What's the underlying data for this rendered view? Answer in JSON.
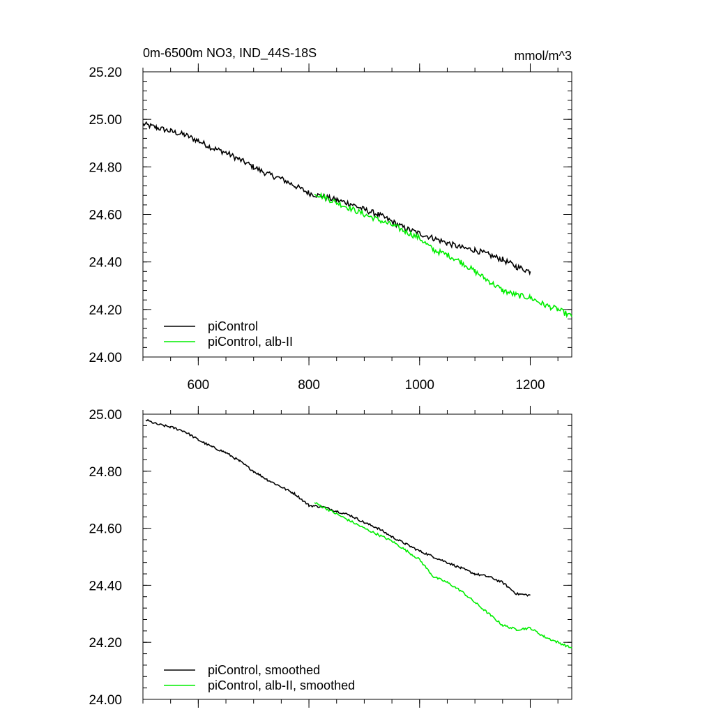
{
  "figure": {
    "title_left": "0m-6500m NO3, IND_44S-18S",
    "title_right": "mmol/m^3"
  },
  "chart_data": [
    {
      "type": "line",
      "title": "0m-6500m NO3, IND_44S-18S",
      "units": "mmol/m^3",
      "xlim": [
        500,
        1275
      ],
      "ylim": [
        24.0,
        25.2
      ],
      "x_ticks": [
        600,
        800,
        1000,
        1200
      ],
      "x_tick_labels": [
        "600",
        "800",
        "1000",
        "1200"
      ],
      "y_ticks": [
        24.0,
        24.2,
        24.4,
        24.6,
        24.8,
        25.0,
        25.2
      ],
      "y_tick_labels": [
        "24.00",
        "24.20",
        "24.40",
        "24.60",
        "24.80",
        "25.00",
        "25.20"
      ],
      "legend_position": "bottom-left",
      "series": [
        {
          "name": "piControl",
          "color": "#000000",
          "x": [
            500,
            525,
            550,
            575,
            600,
            625,
            650,
            675,
            700,
            725,
            750,
            775,
            800,
            825,
            850,
            875,
            900,
            925,
            950,
            975,
            1000,
            1025,
            1050,
            1075,
            1100,
            1125,
            1150,
            1175,
            1200
          ],
          "y": [
            24.98,
            24.965,
            24.95,
            24.935,
            24.91,
            24.88,
            24.86,
            24.83,
            24.8,
            24.77,
            24.75,
            24.72,
            24.69,
            24.675,
            24.66,
            24.645,
            24.62,
            24.6,
            24.57,
            24.54,
            24.52,
            24.5,
            24.48,
            24.46,
            24.45,
            24.43,
            24.41,
            24.38,
            24.36
          ],
          "noise": 0.012
        },
        {
          "name": "piControl, alb-II",
          "color": "#00ee00",
          "x": [
            810,
            850,
            900,
            950,
            1000,
            1025,
            1050,
            1075,
            1100,
            1125,
            1150,
            1175,
            1200,
            1225,
            1250,
            1275
          ],
          "y": [
            24.69,
            24.65,
            24.6,
            24.555,
            24.5,
            24.45,
            24.43,
            24.4,
            24.36,
            24.32,
            24.28,
            24.26,
            24.25,
            24.22,
            24.2,
            24.17
          ],
          "noise": 0.012
        }
      ]
    },
    {
      "type": "line",
      "xlim": [
        500,
        1275
      ],
      "ylim": [
        24.0,
        25.0
      ],
      "x_ticks": [
        600,
        800,
        1000,
        1200
      ],
      "y_ticks": [
        24.0,
        24.2,
        24.4,
        24.6,
        24.8,
        25.0
      ],
      "y_tick_labels": [
        "24.00",
        "24.20",
        "24.40",
        "24.60",
        "24.80",
        "25.00"
      ],
      "legend_position": "bottom-left",
      "series": [
        {
          "name": "piControl, smoothed",
          "color": "#000000",
          "x": [
            505,
            525,
            550,
            575,
            600,
            625,
            650,
            675,
            700,
            725,
            750,
            775,
            800,
            825,
            850,
            875,
            900,
            925,
            950,
            975,
            1000,
            1025,
            1050,
            1075,
            1100,
            1125,
            1150,
            1175,
            1200
          ],
          "y": [
            24.98,
            24.965,
            24.955,
            24.94,
            24.91,
            24.885,
            24.865,
            24.835,
            24.8,
            24.77,
            24.745,
            24.72,
            24.68,
            24.675,
            24.66,
            24.645,
            24.62,
            24.6,
            24.57,
            24.545,
            24.52,
            24.5,
            24.48,
            24.46,
            24.44,
            24.43,
            24.41,
            24.37,
            24.365
          ],
          "noise": 0.004
        },
        {
          "name": "piControl, alb-II, smoothed",
          "color": "#00ee00",
          "x": [
            810,
            850,
            900,
            950,
            1000,
            1025,
            1050,
            1075,
            1100,
            1125,
            1150,
            1175,
            1200,
            1225,
            1250,
            1275
          ],
          "y": [
            24.69,
            24.65,
            24.6,
            24.555,
            24.49,
            24.43,
            24.41,
            24.38,
            24.34,
            24.3,
            24.26,
            24.245,
            24.25,
            24.22,
            24.2,
            24.18
          ],
          "noise": 0.004
        }
      ]
    }
  ]
}
